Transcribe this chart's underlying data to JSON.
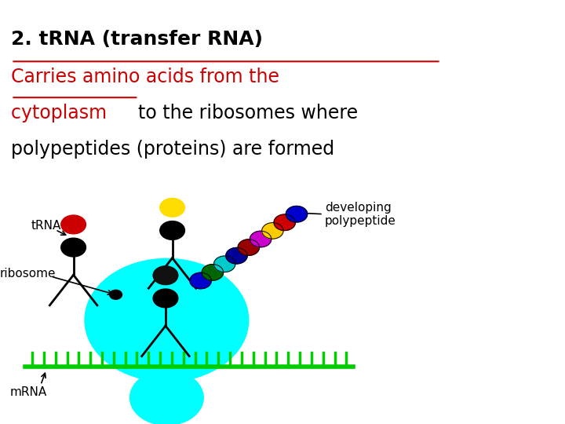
{
  "title_line1": "2. tRNA (transfer RNA)",
  "title_line2_red": "Carries amino acids from the",
  "title_line3_mixed_red": "cytoplasm ",
  "title_line3_black": "to the ribosomes where",
  "title_line4": "polypeptides (proteins) are formed",
  "bg_color": "#ffffff",
  "text_color_black": "#000000",
  "text_color_red": "#cc0000",
  "ribosome_color": "#00ffff",
  "mrna_color": "#00cc00",
  "polypeptide_colors": [
    "#0000cc",
    "#006600",
    "#00cccc",
    "#000099",
    "#990000",
    "#cc00cc",
    "#ffcc00",
    "#cc0000",
    "#0000cc"
  ]
}
